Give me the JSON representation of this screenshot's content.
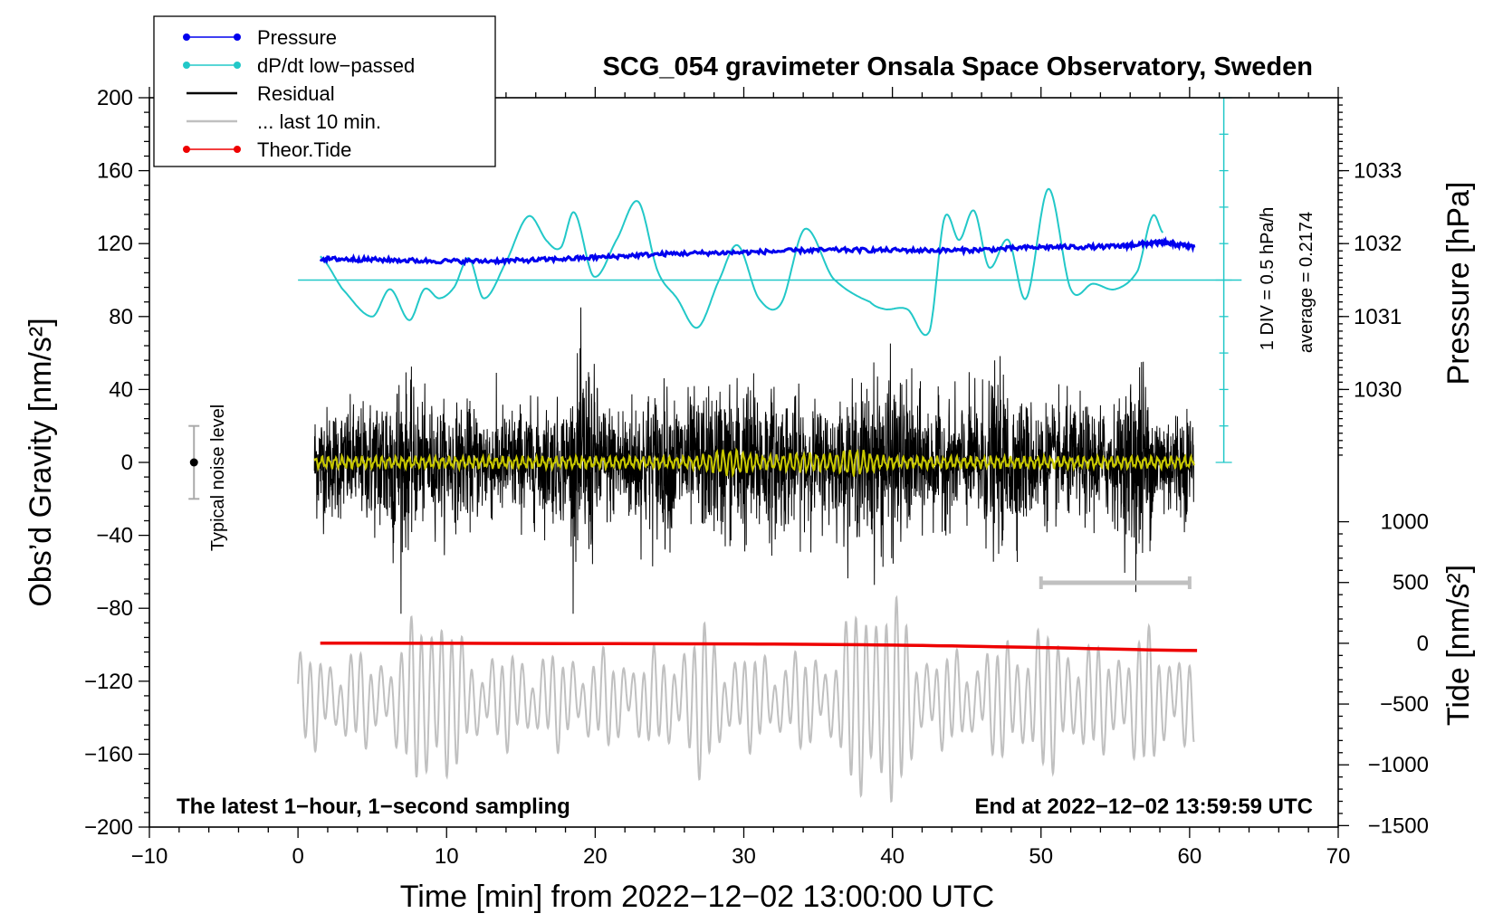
{
  "title": "SCG_054 gravimeter Onsala Space Observatory, Sweden",
  "xlabel": "Time [min] from 2022−12−02 13:00:00 UTC",
  "ylabel_left": "Obs’d Gravity [nm/s²]",
  "ylabel_right_pressure": "Pressure [hPa]",
  "ylabel_right_tide": "Tide [nm/s²]",
  "annotation_left": "The latest 1−hour, 1−second sampling",
  "annotation_right": "End at 2022−12−02 13:59:59 UTC",
  "noise_label": "Typical noise level",
  "dpdt_scale_label": "1 DIV = 0.5 hPa/h",
  "dpdt_average_label": "average = 0.2174",
  "colors": {
    "pressure": "#0000ee",
    "dpdt": "#22c8c8",
    "residual": "#000000",
    "last10": "#c0c0c0",
    "tide": "#ee0000",
    "residual_lowpass": "#c8c800"
  },
  "legend": [
    {
      "name": "Pressure",
      "color": "#0000ee",
      "marker": true
    },
    {
      "name": "dP/dt low−passed",
      "color": "#22c8c8",
      "marker": true
    },
    {
      "name": "Residual",
      "color": "#000000",
      "marker": false
    },
    {
      "name": "... last 10 min.",
      "color": "#c0c0c0",
      "marker": false
    },
    {
      "name": "Theor.Tide",
      "color": "#ee0000",
      "marker": true
    }
  ],
  "chart_data": {
    "type": "line",
    "x_unit": "minutes",
    "xlim": [
      -10,
      70
    ],
    "xticks": [
      "−10",
      "0",
      "10",
      "20",
      "30",
      "40",
      "50",
      "60",
      "70"
    ],
    "ylim_gravity": [
      -200,
      200
    ],
    "yticks_gravity": [
      "200",
      "160",
      "120",
      "80",
      "40",
      "0",
      "−40",
      "−80",
      "−120",
      "−160",
      "−200"
    ],
    "pressure_ticks": [
      "1033",
      "1032",
      "1031",
      "1030"
    ],
    "tide_ticks": [
      "1000",
      "500",
      "0",
      "−500",
      "−1000",
      "−1500"
    ],
    "noise_bar": {
      "x": -7,
      "center": 0,
      "half_range": 20
    },
    "last10_bar": {
      "x_start": 50,
      "x_end": 60,
      "y": -66
    },
    "dpdt_baseline_y_gravity": 100,
    "series": [
      {
        "name": "Pressure",
        "unit": "hPa",
        "x": [
          1.5,
          5,
          10,
          15,
          20,
          25,
          30,
          35,
          40,
          45,
          50,
          55,
          58,
          60.3
        ],
        "values": [
          1031.79,
          1031.78,
          1031.76,
          1031.77,
          1031.81,
          1031.86,
          1031.88,
          1031.91,
          1031.91,
          1031.91,
          1031.95,
          1031.96,
          1032.01,
          1031.96
        ]
      },
      {
        "name": "dP/dt low−passed",
        "unit": "nm/s² axis equivalent",
        "x": [
          1.5,
          3,
          5,
          6.2,
          7.5,
          8.5,
          9.5,
          10.5,
          11.5,
          12.5,
          14,
          15.5,
          16.8,
          17.7,
          18.6,
          19.9,
          21.5,
          22.9,
          24.2,
          25.5,
          26.9,
          28.4,
          29.6,
          31,
          32.5,
          34.1,
          36,
          38.5,
          39.5,
          41,
          42.5,
          43.5,
          44.5,
          45.5,
          46.5,
          47.8,
          49,
          50.5,
          52,
          53.5,
          55,
          56.5,
          57.5,
          58.2
        ],
        "values": [
          113,
          95,
          80,
          95,
          78,
          95,
          90,
          96,
          112,
          90,
          110,
          135,
          121,
          118,
          137,
          102,
          123,
          143,
          105,
          90,
          74,
          101,
          119,
          90,
          87,
          128,
          101,
          88,
          84,
          84,
          72,
          134,
          122,
          138,
          107,
          122,
          90,
          150,
          95,
          98,
          95,
          105,
          135,
          126
        ]
      },
      {
        "name": "Residual",
        "unit": "nm/s²",
        "x_range": [
          1.1,
          60.3
        ],
        "envelope_min": -83,
        "envelope_max": 85,
        "typical_amplitude": 35
      },
      {
        "name": "... last 10 min.",
        "unit": "nm/s² (displayed offset)",
        "x_range": [
          0,
          60.3
        ],
        "min": -200,
        "max": -64
      },
      {
        "name": "Theor.Tide",
        "unit": "nm/s²",
        "x": [
          1.5,
          30,
          40,
          50,
          60.5
        ],
        "values": [
          1,
          -5,
          -15,
          -35,
          -60
        ]
      }
    ]
  }
}
